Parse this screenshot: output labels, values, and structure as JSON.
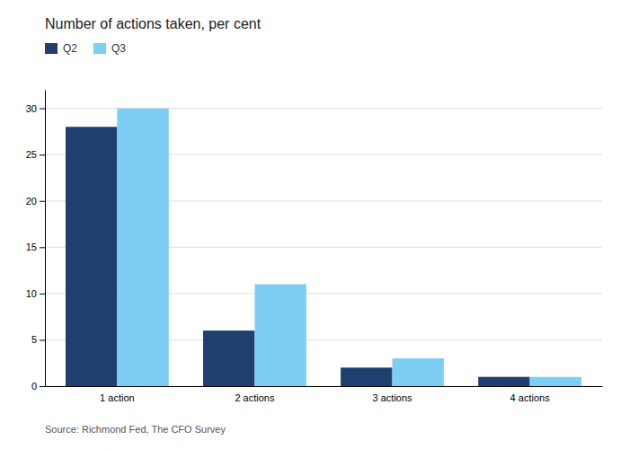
{
  "chart_data": {
    "type": "bar",
    "title": "Number of actions taken, per cent",
    "categories": [
      "1 action",
      "2 actions",
      "3 actions",
      "4 actions"
    ],
    "series": [
      {
        "name": "Q2",
        "color": "#1f3f6e",
        "values": [
          28,
          6,
          2,
          1
        ]
      },
      {
        "name": "Q3",
        "color": "#7ecef4",
        "values": [
          30,
          11,
          3,
          1
        ]
      }
    ],
    "ylim": [
      0,
      32
    ],
    "yticks": [
      0,
      5,
      10,
      15,
      20,
      25,
      30
    ],
    "grid": true,
    "legend": "top-left",
    "annotations": [
      "Source: Richmond Fed, The CFO Survey"
    ]
  }
}
